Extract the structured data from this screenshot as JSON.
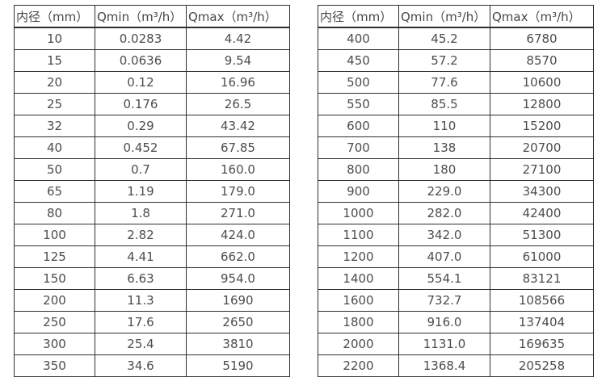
{
  "page": {
    "background": "#ffffff",
    "text_color": "#4a4a4a",
    "border_color": "#2e2e2e"
  },
  "tables": [
    {
      "name": "small-diameter-flow-table",
      "headers": [
        "内径（mm）",
        "Qmin（m³/h）",
        "Qmax（m³/h）"
      ],
      "rows": [
        [
          "10",
          "0.0283",
          "4.42"
        ],
        [
          "15",
          "0.0636",
          "9.54"
        ],
        [
          "20",
          "0.12",
          "16.96"
        ],
        [
          "25",
          "0.176",
          "26.5"
        ],
        [
          "32",
          "0.29",
          "43.42"
        ],
        [
          "40",
          "0.452",
          "67.85"
        ],
        [
          "50",
          "0.7",
          "160.0"
        ],
        [
          "65",
          "1.19",
          "179.0"
        ],
        [
          "80",
          "1.8",
          "271.0"
        ],
        [
          "100",
          "2.82",
          "424.0"
        ],
        [
          "125",
          "4.41",
          "662.0"
        ],
        [
          "150",
          "6.63",
          "954.0"
        ],
        [
          "200",
          "11.3",
          "1690"
        ],
        [
          "250",
          "17.6",
          "2650"
        ],
        [
          "300",
          "25.4",
          "3810"
        ],
        [
          "350",
          "34.6",
          "5190"
        ]
      ]
    },
    {
      "name": "large-diameter-flow-table",
      "headers": [
        "内径（mm）",
        "Qmin（m³/h）",
        "Qmax（m³/h）"
      ],
      "rows": [
        [
          "400",
          "45.2",
          "6780"
        ],
        [
          "450",
          "57.2",
          "8570"
        ],
        [
          "500",
          "77.6",
          "10600"
        ],
        [
          "550",
          "85.5",
          "12800"
        ],
        [
          "600",
          "110",
          "15200"
        ],
        [
          "700",
          "138",
          "20700"
        ],
        [
          "800",
          "180",
          "27100"
        ],
        [
          "900",
          "229.0",
          "34300"
        ],
        [
          "1000",
          "282.0",
          "42400"
        ],
        [
          "1100",
          "342.0",
          "51300"
        ],
        [
          "1200",
          "407.0",
          "61000"
        ],
        [
          "1400",
          "554.1",
          "83121"
        ],
        [
          "1600",
          "732.7",
          "108566"
        ],
        [
          "1800",
          "916.0",
          "137404"
        ],
        [
          "2000",
          "1131.0",
          "169635"
        ],
        [
          "2200",
          "1368.4",
          "205258"
        ]
      ]
    }
  ]
}
